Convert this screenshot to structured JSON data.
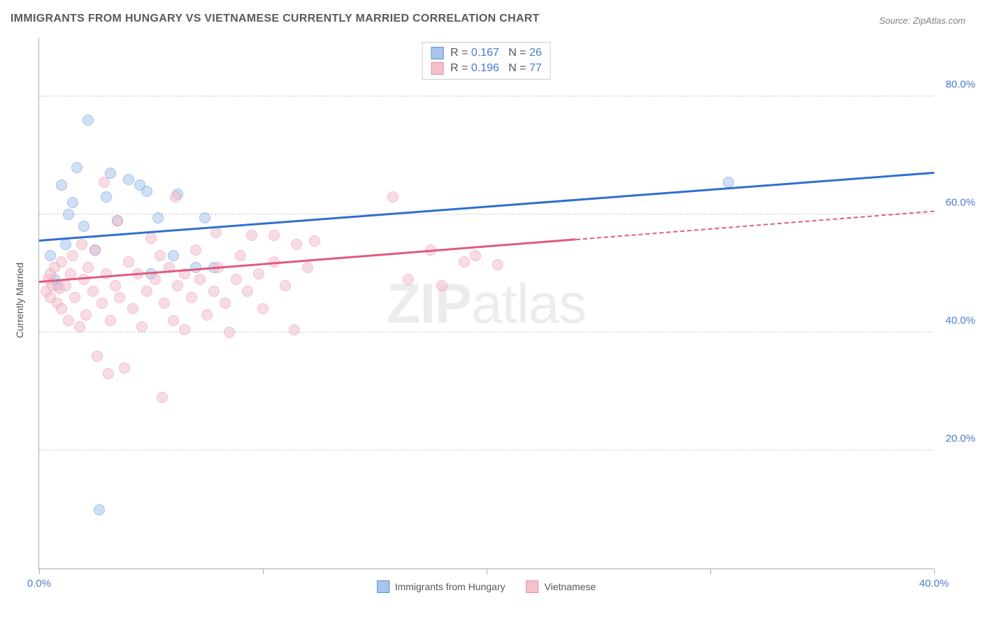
{
  "title": "IMMIGRANTS FROM HUNGARY VS VIETNAMESE CURRENTLY MARRIED CORRELATION CHART",
  "source": "Source: ZipAtlas.com",
  "watermark": {
    "bold": "ZIP",
    "light": "atlas"
  },
  "chart": {
    "type": "scatter-with-trend",
    "xlim": [
      0,
      40
    ],
    "ylim": [
      0,
      90
    ],
    "x_ticks": [
      0,
      10,
      20,
      30,
      40
    ],
    "x_tick_labels": [
      "0.0%",
      "",
      "",
      "",
      "40.0%"
    ],
    "y_ticks": [
      20,
      40,
      60,
      80
    ],
    "y_tick_labels": [
      "20.0%",
      "40.0%",
      "60.0%",
      "80.0%"
    ],
    "ylabel": "Currently Married",
    "grid_color": "#d0d0d0",
    "axis_color": "#aaaaaa",
    "tick_label_color": "#4a7bd0",
    "point_radius": 8,
    "point_opacity": 0.55,
    "series": [
      {
        "key": "hungary",
        "label": "Immigrants from Hungary",
        "fill": "#a8c5ec",
        "stroke": "#5b8fd6",
        "line_color": "#2e6fd1",
        "R": "0.167",
        "N": "26",
        "trend": {
          "x0": 0,
          "y0": 55.5,
          "x1": 40,
          "y1": 67,
          "dash_from": null
        },
        "points": [
          [
            0.5,
            53
          ],
          [
            0.7,
            49
          ],
          [
            0.8,
            48
          ],
          [
            1.0,
            65
          ],
          [
            1.2,
            55
          ],
          [
            1.3,
            60
          ],
          [
            1.5,
            62
          ],
          [
            1.7,
            68
          ],
          [
            2.0,
            58
          ],
          [
            2.2,
            76
          ],
          [
            2.5,
            54
          ],
          [
            2.7,
            10
          ],
          [
            3.0,
            63
          ],
          [
            3.2,
            67
          ],
          [
            3.5,
            59
          ],
          [
            4.0,
            66
          ],
          [
            4.5,
            65
          ],
          [
            4.8,
            64
          ],
          [
            5.0,
            50
          ],
          [
            5.3,
            59.5
          ],
          [
            6.0,
            53
          ],
          [
            7.0,
            51
          ],
          [
            6.2,
            63.5
          ],
          [
            7.4,
            59.5
          ],
          [
            7.8,
            51
          ],
          [
            30.8,
            65.5
          ]
        ]
      },
      {
        "key": "vietnamese",
        "label": "Vietnamese",
        "fill": "#f4c1cd",
        "stroke": "#e88ba4",
        "line_color": "#e05a7e",
        "R": "0.196",
        "N": "77",
        "trend": {
          "x0": 0,
          "y0": 48.5,
          "x1": 40,
          "y1": 60.5,
          "dash_from": 24
        },
        "points": [
          [
            0.3,
            47
          ],
          [
            0.4,
            49
          ],
          [
            0.5,
            46
          ],
          [
            0.5,
            50
          ],
          [
            0.6,
            48
          ],
          [
            0.7,
            51
          ],
          [
            0.8,
            45
          ],
          [
            0.9,
            47.5
          ],
          [
            1.0,
            52
          ],
          [
            1.0,
            44
          ],
          [
            1.2,
            48
          ],
          [
            1.3,
            42
          ],
          [
            1.4,
            50
          ],
          [
            1.5,
            53
          ],
          [
            1.6,
            46
          ],
          [
            1.8,
            41
          ],
          [
            1.9,
            55
          ],
          [
            2.0,
            49
          ],
          [
            2.1,
            43
          ],
          [
            2.2,
            51
          ],
          [
            2.4,
            47
          ],
          [
            2.5,
            54
          ],
          [
            2.6,
            36
          ],
          [
            2.8,
            45
          ],
          [
            2.9,
            65.5
          ],
          [
            3.0,
            50
          ],
          [
            3.1,
            33
          ],
          [
            3.2,
            42
          ],
          [
            3.4,
            48
          ],
          [
            3.5,
            59
          ],
          [
            3.6,
            46
          ],
          [
            3.8,
            34
          ],
          [
            4.0,
            52
          ],
          [
            4.2,
            44
          ],
          [
            4.4,
            50
          ],
          [
            4.6,
            41
          ],
          [
            4.8,
            47
          ],
          [
            5.0,
            56
          ],
          [
            5.2,
            49
          ],
          [
            5.4,
            53
          ],
          [
            5.5,
            29
          ],
          [
            5.6,
            45
          ],
          [
            5.8,
            51
          ],
          [
            6.0,
            42
          ],
          [
            6.1,
            63
          ],
          [
            6.2,
            48
          ],
          [
            6.5,
            50
          ],
          [
            6.5,
            40.5
          ],
          [
            6.8,
            46
          ],
          [
            7.0,
            54
          ],
          [
            7.2,
            49
          ],
          [
            7.5,
            43
          ],
          [
            7.8,
            47
          ],
          [
            7.9,
            57
          ],
          [
            8.0,
            51
          ],
          [
            8.3,
            45
          ],
          [
            8.5,
            40
          ],
          [
            8.8,
            49
          ],
          [
            9.0,
            53
          ],
          [
            9.3,
            47
          ],
          [
            9.5,
            56.5
          ],
          [
            9.8,
            50
          ],
          [
            10.0,
            44
          ],
          [
            10.5,
            52
          ],
          [
            10.5,
            56.5
          ],
          [
            11.0,
            48
          ],
          [
            11.5,
            55
          ],
          [
            11.4,
            40.5
          ],
          [
            12.0,
            51
          ],
          [
            12.3,
            55.5
          ],
          [
            15.8,
            63
          ],
          [
            16.5,
            49
          ],
          [
            17.5,
            54
          ],
          [
            18.0,
            48
          ],
          [
            19.0,
            52
          ],
          [
            19.5,
            53
          ],
          [
            20.5,
            51.5
          ]
        ]
      }
    ],
    "legend_top": {
      "border": "#cccccc",
      "bg": "#ffffff",
      "rows": [
        {
          "swatch_fill": "#a8c5ec",
          "swatch_stroke": "#5b8fd6",
          "text_parts": [
            "R = ",
            "0.167",
            "   N = ",
            "26"
          ]
        },
        {
          "swatch_fill": "#f4c1cd",
          "swatch_stroke": "#e88ba4",
          "text_parts": [
            "R = ",
            "0.196",
            "   N = ",
            "77"
          ]
        }
      ]
    },
    "legend_bottom": [
      {
        "swatch_fill": "#a8c5ec",
        "swatch_stroke": "#5b8fd6",
        "label": "Immigrants from Hungary"
      },
      {
        "swatch_fill": "#f4c1cd",
        "swatch_stroke": "#e88ba4",
        "label": "Vietnamese"
      }
    ]
  }
}
